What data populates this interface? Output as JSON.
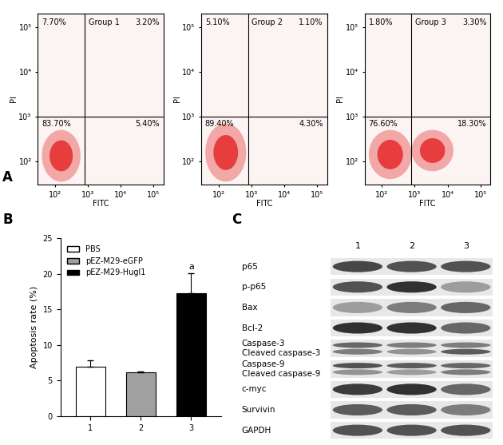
{
  "chart_data": [
    {
      "panel": "A",
      "type": "scatter",
      "log": true,
      "x_label": "FITC",
      "y_label": "PI",
      "xlim": [
        30,
        200000
      ],
      "ylim": [
        30,
        200000
      ],
      "xticks": [
        {
          "value": 100,
          "label": "10²"
        },
        {
          "value": 1000,
          "label": "10³"
        },
        {
          "value": 10000,
          "label": "10⁴"
        },
        {
          "value": 100000,
          "label": "10⁵"
        }
      ],
      "yticks": [
        {
          "value": 100,
          "label": "10²"
        },
        {
          "value": 1000,
          "label": "10³"
        },
        {
          "value": 10000,
          "label": "10⁴"
        },
        {
          "value": 100000,
          "label": "10⁵"
        }
      ],
      "color": "#e41a1c",
      "gates": {
        "x": 800,
        "y": 1000
      },
      "groups": [
        {
          "title": "Group 1",
          "quadrants": {
            "upper_left": "7.70%",
            "upper_right": "3.20%",
            "lower_left": "83.70%",
            "lower_right": "5.40%"
          },
          "clusters": [
            {
              "x_range": [
                40,
                600
              ],
              "y_range": [
                35,
                500
              ]
            }
          ]
        },
        {
          "title": "Group 2",
          "quadrants": {
            "upper_left": "5.10%",
            "upper_right": "1.10%",
            "lower_left": "89.40%",
            "lower_right": "4.30%"
          },
          "clusters": [
            {
              "x_range": [
                40,
                700
              ],
              "y_range": [
                35,
                700
              ]
            }
          ]
        },
        {
          "title": "Group 3",
          "quadrants": {
            "upper_left": "1.80%",
            "upper_right": "3.30%",
            "lower_left": "76.60%",
            "lower_right": "18.30%"
          },
          "clusters": [
            {
              "x_range": [
                40,
                800
              ],
              "y_range": [
                40,
                500
              ]
            },
            {
              "x_range": [
                800,
                15000
              ],
              "y_range": [
                60,
                500
              ]
            }
          ]
        }
      ]
    },
    {
      "panel": "B",
      "type": "bar",
      "y_label": "Apoptosis rate (%)",
      "categories": [
        "1",
        "2",
        "3"
      ],
      "series": [
        {
          "name": "PBS",
          "color": "#ffffff",
          "values": [
            6.9,
            null,
            null
          ],
          "errors": [
            0.9,
            null,
            null
          ]
        },
        {
          "name": "pEZ-M29-eGFP",
          "color": "#a0a0a0",
          "values": [
            null,
            6.2,
            null
          ],
          "errors": [
            null,
            0.1,
            null
          ]
        },
        {
          "name": "pEZ-M29-Hugl1",
          "color": "#000000",
          "values": [
            null,
            null,
            17.3
          ],
          "errors": [
            null,
            null,
            2.8
          ]
        }
      ],
      "ylim": [
        0,
        25
      ],
      "yticks": [
        0,
        5,
        10,
        15,
        20,
        25
      ],
      "legend": "upper left",
      "annotations": [
        {
          "text": "a",
          "category": "3"
        }
      ]
    }
  ],
  "western_blot": {
    "panel": "C",
    "lanes": [
      "1",
      "2",
      "3"
    ],
    "rows": [
      {
        "label": "p65",
        "bands": [
          [
            0.85,
            0.8,
            0.8
          ]
        ]
      },
      {
        "label": "p-p65",
        "bands": [
          [
            0.8,
            0.95,
            0.45
          ]
        ]
      },
      {
        "label": "Bax",
        "bands": [
          [
            0.45,
            0.6,
            0.7
          ]
        ]
      },
      {
        "label": "Bcl-2",
        "bands": [
          [
            0.95,
            0.95,
            0.7
          ]
        ]
      },
      {
        "label": "Caspase-3\nCleaved caspase-3",
        "bands": [
          [
            0.7,
            0.6,
            0.6
          ],
          [
            0.6,
            0.5,
            0.75
          ]
        ]
      },
      {
        "label": "Caspase-9\nCleaved caspase-9",
        "bands": [
          [
            0.8,
            0.75,
            0.7
          ],
          [
            0.5,
            0.45,
            0.6
          ]
        ]
      },
      {
        "label": "c-myc",
        "bands": [
          [
            0.9,
            0.95,
            0.7
          ]
        ]
      },
      {
        "label": "Survivin",
        "bands": [
          [
            0.75,
            0.75,
            0.6
          ]
        ]
      },
      {
        "label": "GAPDH",
        "bands": [
          [
            0.8,
            0.8,
            0.8
          ]
        ]
      }
    ]
  }
}
